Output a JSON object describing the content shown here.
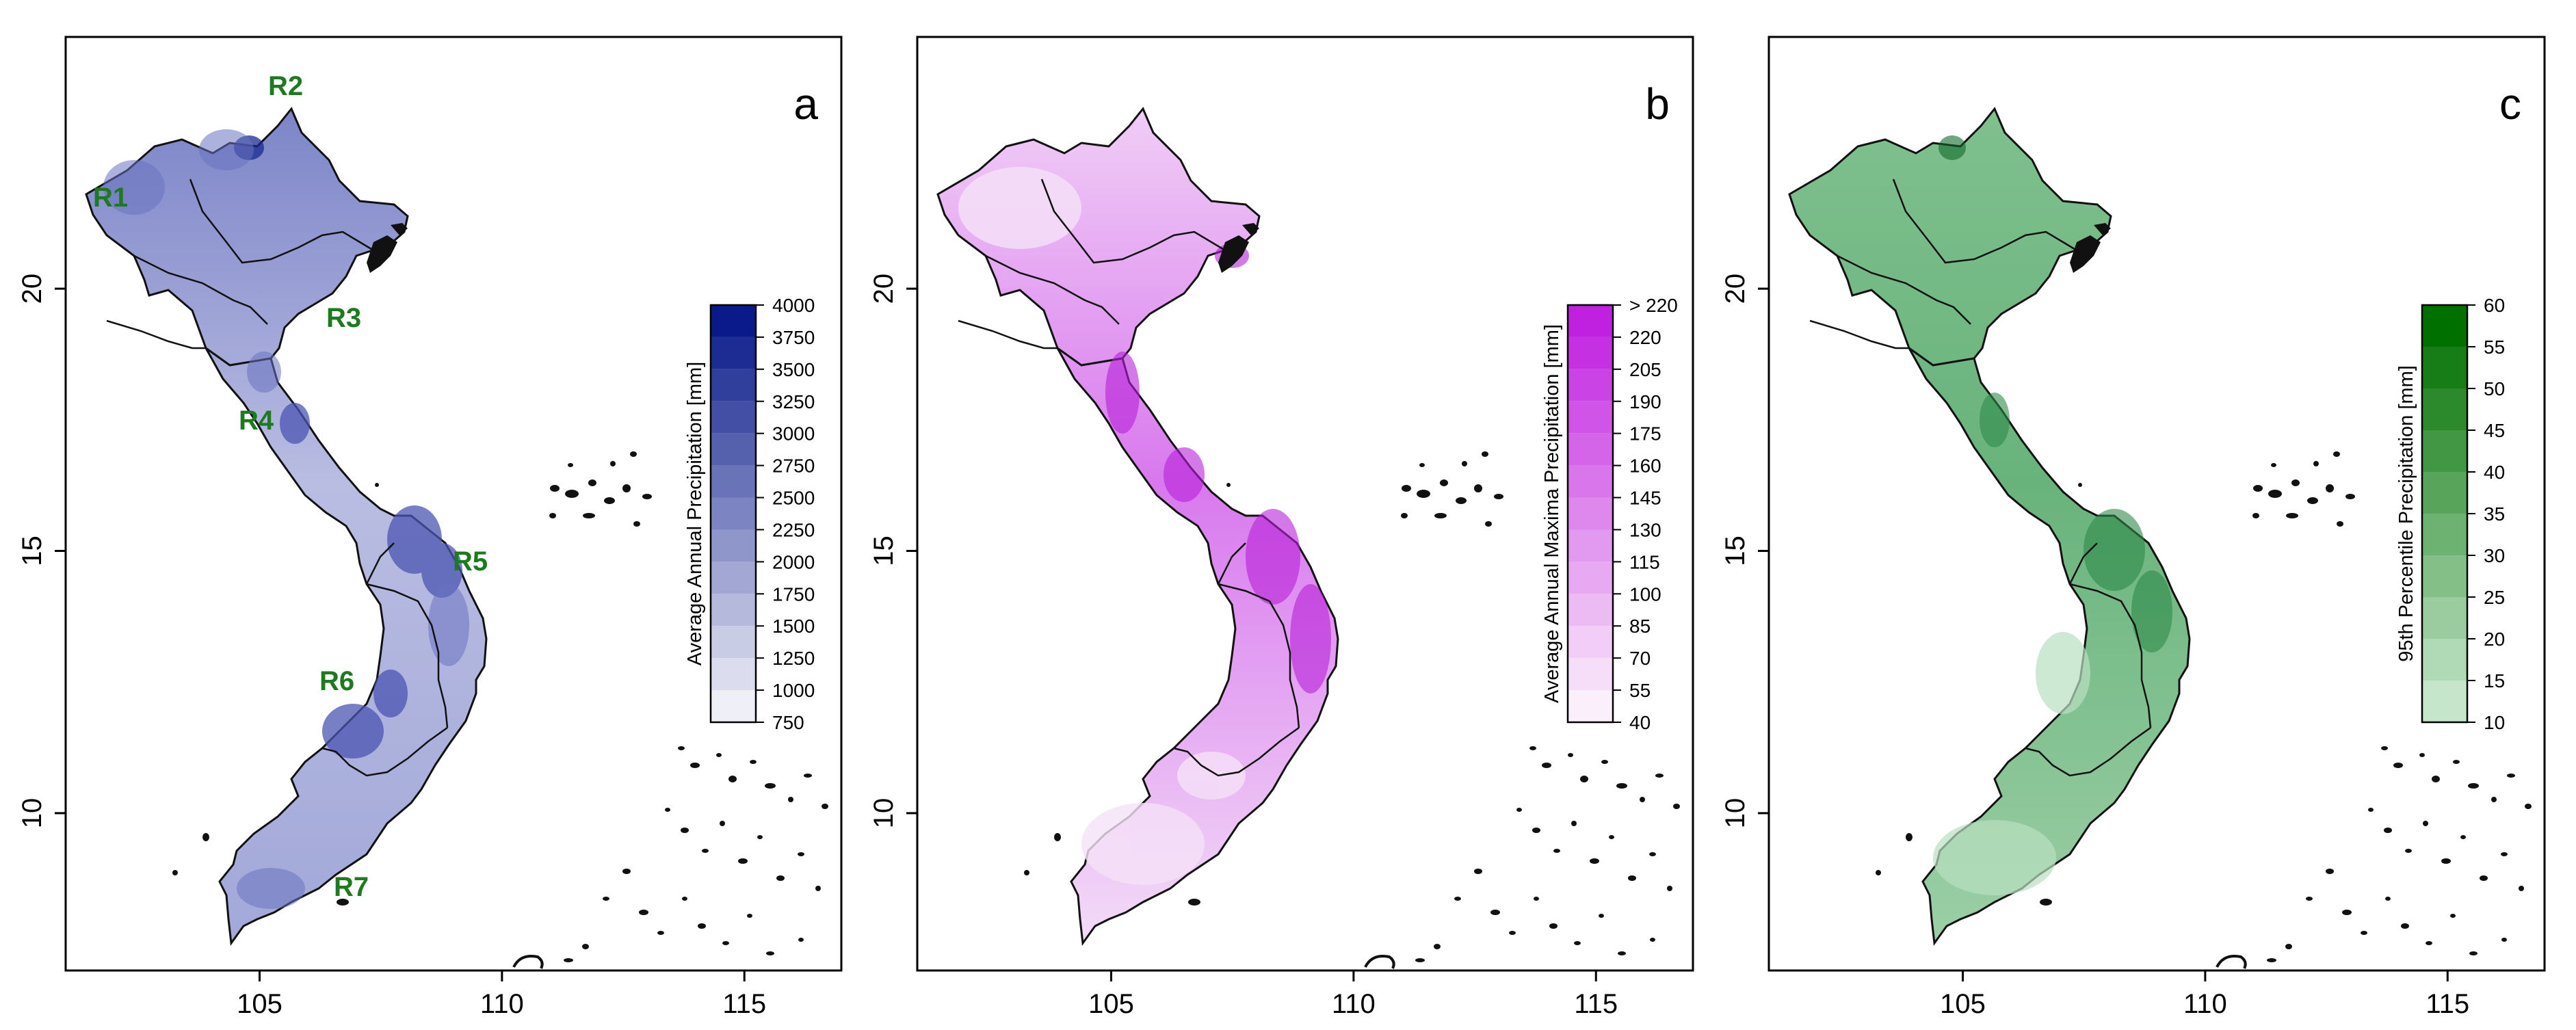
{
  "axes": {
    "x_ticks": [
      "105",
      "110",
      "115"
    ],
    "y_ticks": [
      "10",
      "15",
      "20"
    ]
  },
  "panels": [
    {
      "letter": "a",
      "colorbar_title": "Average Annual Precipitation [mm]",
      "colorbar_ticks": [
        "750",
        "1000",
        "1250",
        "1500",
        "1750",
        "2000",
        "2250",
        "2500",
        "2750",
        "3000",
        "3250",
        "3500",
        "3750",
        "4000"
      ],
      "colors": {
        "light": "#eeeff7",
        "dark": "#0a1a8a"
      },
      "region_labels": [
        "R1",
        "R2",
        "R3",
        "R4",
        "R5",
        "R6",
        "R7"
      ],
      "region_label_color": "#1e7a1e"
    },
    {
      "letter": "b",
      "colorbar_title": "Average Annual Maxima Precipitation [mm]",
      "colorbar_ticks": [
        "40",
        "55",
        "70",
        "85",
        "100",
        "115",
        "130",
        "145",
        "160",
        "175",
        "190",
        "205",
        "220",
        "> 220"
      ],
      "colors": {
        "light": "#fbeffb",
        "dark": "#c020e0"
      }
    },
    {
      "letter": "c",
      "colorbar_title": "95th Percentile Precipitation [mm]",
      "colorbar_ticks": [
        "10",
        "15",
        "20",
        "25",
        "30",
        "35",
        "40",
        "45",
        "50",
        "55",
        "60"
      ],
      "colors": {
        "light": "#c6e6cc",
        "dark": "#007000"
      }
    }
  ]
}
